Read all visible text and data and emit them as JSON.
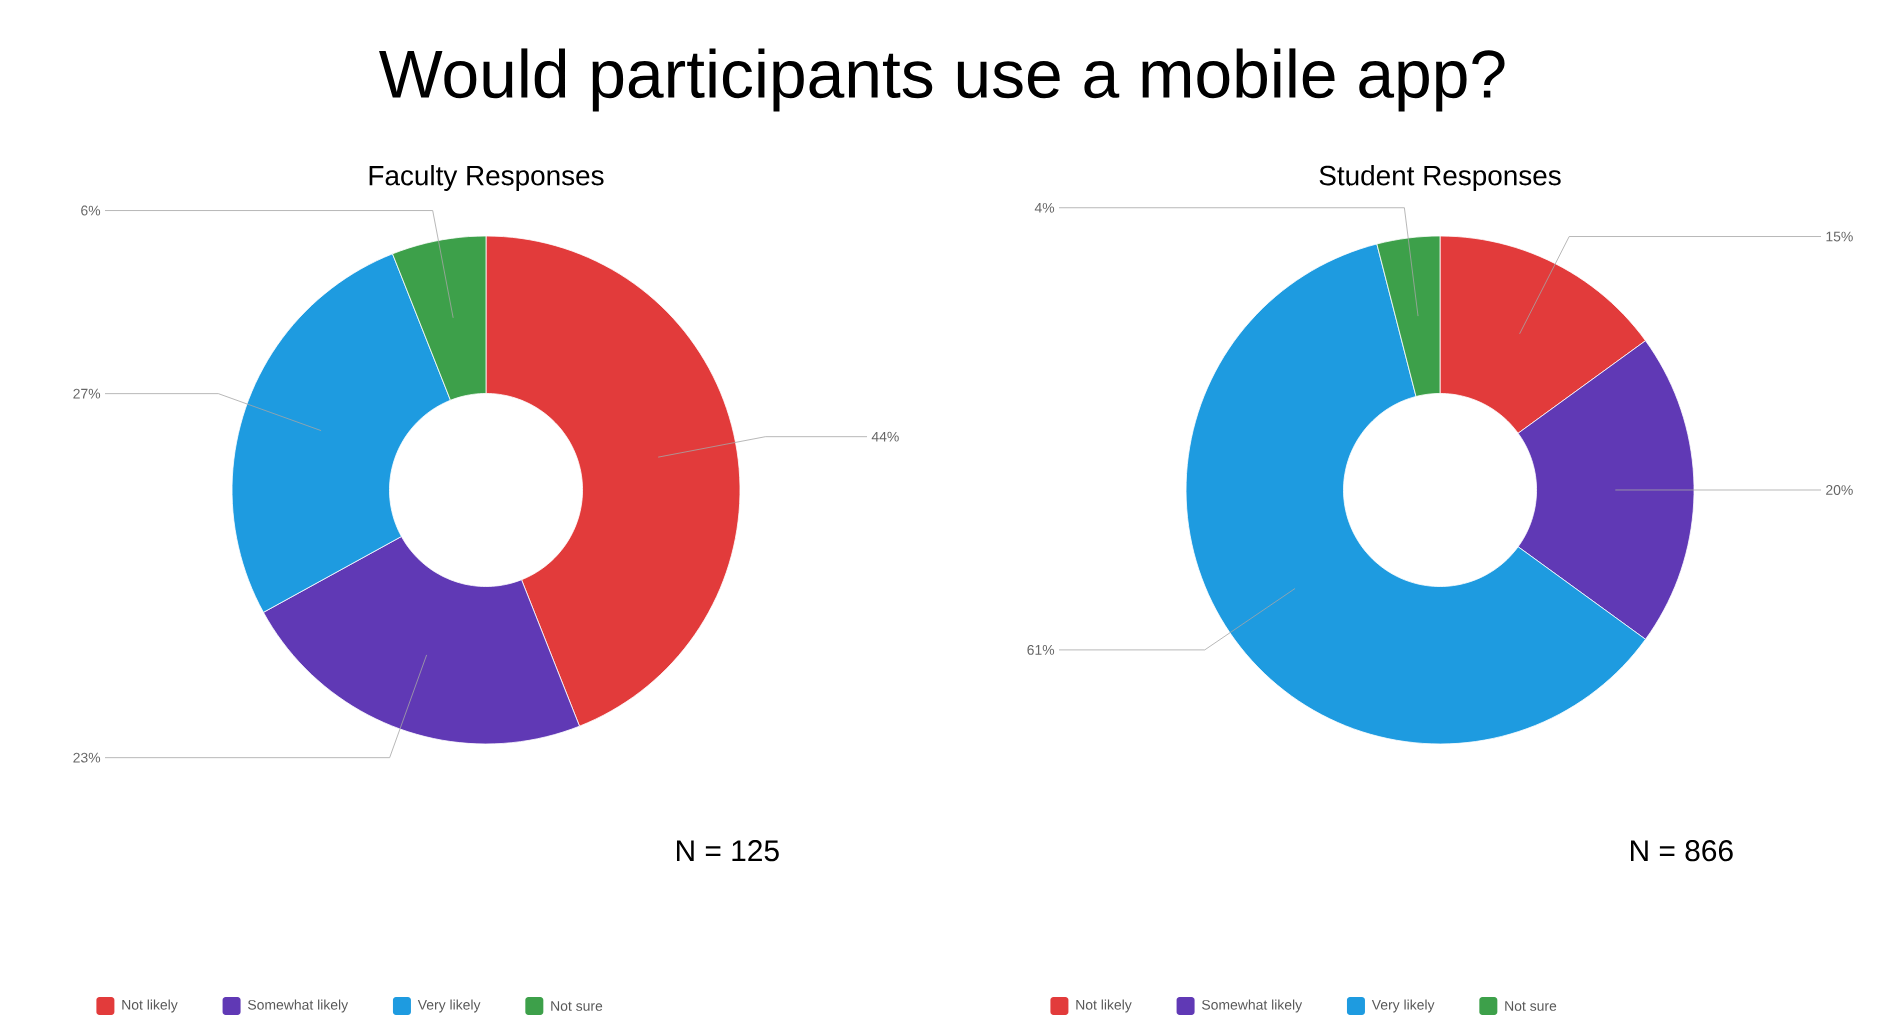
{
  "chart_data": [
    {
      "type": "donut",
      "title": "Would participants use a mobile app?",
      "subtitle": "Faculty Responses",
      "categories": [
        "Not likely",
        "Somewhat likely",
        "Very likely",
        "Not sure"
      ],
      "values": [
        44,
        23,
        27,
        6
      ],
      "value_labels": [
        "44%",
        "23%",
        "27%",
        "6%"
      ],
      "colors": [
        "#e23b3b",
        "#6039b5",
        "#1e9be0",
        "#3da04a"
      ],
      "annotations": [
        "N = 125"
      ],
      "legend": "bottom"
    },
    {
      "type": "donut",
      "subtitle": "Student Responses",
      "categories": [
        "Not likely",
        "Somewhat likely",
        "Very likely",
        "Not sure"
      ],
      "values": [
        15,
        20,
        61,
        4
      ],
      "value_labels": [
        "15%",
        "20%",
        "61%",
        "4%"
      ],
      "colors": [
        "#e23b3b",
        "#6039b5",
        "#1e9be0",
        "#3da04a"
      ],
      "annotations": [
        "N = 866"
      ],
      "legend": "bottom"
    }
  ]
}
